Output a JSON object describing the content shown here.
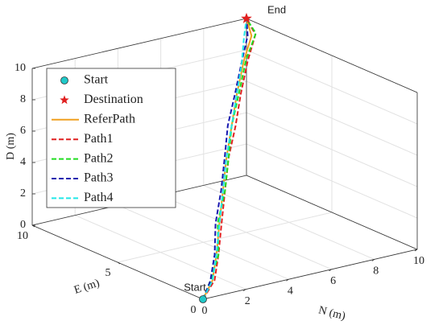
{
  "chart_data": {
    "type": "line3d",
    "xlabel": "N (m)",
    "ylabel": "E (m)",
    "zlabel": "D (m)",
    "xlim": [
      0,
      10
    ],
    "ylim": [
      0,
      10
    ],
    "zlim": [
      0,
      10
    ],
    "xticks": [
      0,
      2,
      4,
      6,
      8,
      10
    ],
    "yticks": [
      0,
      5,
      10
    ],
    "zticks": [
      0,
      2,
      4,
      6,
      8,
      10
    ],
    "grid": true,
    "legend": "upper left",
    "markers": [
      {
        "name": "Start",
        "color": "#20c8c8",
        "x": 0,
        "y": 0,
        "z": 0
      },
      {
        "name": "Destination",
        "color": "#e02020",
        "x": 10,
        "y": 10,
        "z": 10
      }
    ],
    "series": [
      {
        "name": "ReferPath",
        "color": "#f0a020",
        "dash": false,
        "x": [
          0,
          0.6,
          1.5,
          2.6,
          3.8,
          5,
          6.2,
          7.4,
          8.6,
          9.6,
          10
        ],
        "y": [
          0,
          0.2,
          1.1,
          2.3,
          3.6,
          4.9,
          6.1,
          7.3,
          8.4,
          9.2,
          10
        ],
        "z": [
          0,
          0.9,
          1.8,
          2.9,
          4,
          5.1,
          6.2,
          7.3,
          8.5,
          9.4,
          10
        ]
      },
      {
        "name": "Path1",
        "color": "#e02020",
        "dash": true,
        "x": [
          0,
          0.7,
          1.6,
          2.7,
          3.9,
          5.1,
          6.3,
          7.5,
          8.7,
          9.7,
          10
        ],
        "y": [
          0,
          0.2,
          1.1,
          2.3,
          3.6,
          4.9,
          6.0,
          7.2,
          8.3,
          9.1,
          10
        ],
        "z": [
          0,
          0.9,
          1.8,
          2.9,
          4,
          5.1,
          6.2,
          7.3,
          8.5,
          9.5,
          10
        ]
      },
      {
        "name": "Path2",
        "color": "#20dd20",
        "dash": true,
        "x": [
          0,
          0.6,
          1.6,
          2.6,
          3.9,
          5.1,
          6.2,
          7.5,
          8.7,
          9.8,
          10
        ],
        "y": [
          0,
          0.3,
          1.1,
          2.4,
          3.6,
          4.9,
          6.1,
          7.3,
          8.4,
          9.2,
          10
        ],
        "z": [
          0,
          0.9,
          1.8,
          2.9,
          4,
          5.1,
          6.2,
          7.3,
          8.5,
          9.5,
          10
        ]
      },
      {
        "name": "Path3",
        "color": "#1818b0",
        "dash": true,
        "x": [
          0,
          0.5,
          1.5,
          2.5,
          3.8,
          5,
          6.1,
          7.4,
          8.6,
          9.5,
          10
        ],
        "y": [
          0,
          0.2,
          1.2,
          2.4,
          3.7,
          5,
          6.2,
          7.4,
          8.5,
          9.3,
          10
        ],
        "z": [
          0,
          0.9,
          1.8,
          2.9,
          4,
          5.1,
          6.2,
          7.3,
          8.5,
          9.4,
          10
        ]
      },
      {
        "name": "Path4",
        "color": "#20e8e8",
        "dash": true,
        "x": [
          0,
          0.6,
          1.5,
          2.6,
          3.8,
          5,
          6.2,
          7.4,
          8.5,
          9.4,
          10
        ],
        "y": [
          0,
          0.2,
          1.1,
          2.3,
          3.6,
          4.9,
          6.1,
          7.3,
          8.4,
          9.4,
          10
        ],
        "z": [
          0,
          0.9,
          1.8,
          2.9,
          4,
          5.1,
          6.2,
          7.3,
          8.3,
          9.2,
          10
        ]
      }
    ],
    "annotations": [
      {
        "text": "Start",
        "marker": 0
      },
      {
        "text": "End",
        "marker": 1
      }
    ]
  }
}
